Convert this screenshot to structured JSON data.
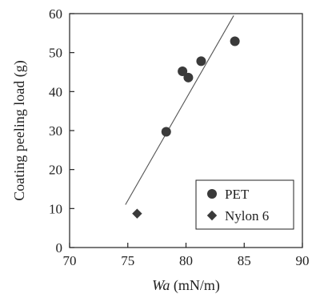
{
  "chart_data": {
    "type": "scatter",
    "title": "",
    "xlabel": {
      "italic": "Wa",
      "rest": " (mN/m)"
    },
    "ylabel": "Coating peeling load (g)",
    "xlim": [
      70,
      90
    ],
    "ylim": [
      0,
      60
    ],
    "xticks": [
      70,
      75,
      80,
      85,
      90
    ],
    "yticks": [
      0,
      10,
      20,
      30,
      40,
      50,
      60
    ],
    "grid": false,
    "legend_position": "bottom-right",
    "series": [
      {
        "name": "PET",
        "marker": "circle",
        "color": "#3a3a3a",
        "points": [
          [
            78.3,
            29.7
          ],
          [
            79.7,
            45.2
          ],
          [
            80.2,
            43.6
          ],
          [
            81.3,
            47.8
          ],
          [
            84.2,
            52.9
          ]
        ]
      },
      {
        "name": "Nylon 6",
        "marker": "diamond",
        "color": "#3a3a3a",
        "points": [
          [
            75.8,
            8.7
          ]
        ]
      }
    ],
    "fit_line": {
      "x": [
        74.8,
        84.1
      ],
      "y": [
        11.0,
        59.5
      ],
      "color": "#555555"
    }
  }
}
